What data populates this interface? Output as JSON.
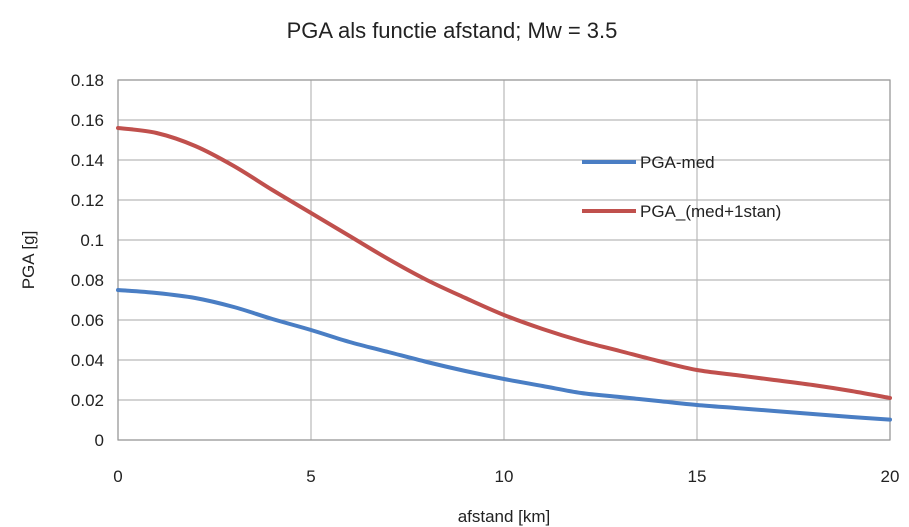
{
  "chart_data": {
    "type": "line",
    "title": "PGA als functie afstand; Mw = 3.5",
    "xlabel": "afstand [km]",
    "ylabel": "PGA [g]",
    "xlim": [
      0,
      20
    ],
    "ylim": [
      0,
      0.18
    ],
    "xticks": [
      0,
      5,
      10,
      15,
      20
    ],
    "yticks": [
      0,
      0.02,
      0.04,
      0.06,
      0.08,
      0.1,
      0.12,
      0.14,
      0.16,
      0.18
    ],
    "ytick_labels": [
      "0",
      "0.02",
      "0.04",
      "0.06",
      "0.08",
      "0.1",
      "0.12",
      "0.14",
      "0.16",
      "0.18"
    ],
    "grid": true,
    "legend_position": "right-upper-inside",
    "series": [
      {
        "name": "PGA-med",
        "color": "#4a7ec4",
        "x": [
          0,
          1,
          2,
          3,
          4,
          5,
          6,
          7,
          8,
          9,
          10,
          11,
          12,
          13,
          14,
          15,
          16,
          17,
          18,
          19,
          20
        ],
        "y": [
          0.075,
          0.0735,
          0.071,
          0.0665,
          0.0605,
          0.055,
          0.049,
          0.044,
          0.039,
          0.0345,
          0.0305,
          0.027,
          0.0235,
          0.0215,
          0.0195,
          0.0175,
          0.016,
          0.0145,
          0.013,
          0.0115,
          0.0102
        ]
      },
      {
        "name": "PGA_(med+1stan)",
        "color": "#c0504d",
        "x": [
          0,
          1,
          2,
          3,
          4,
          5,
          6,
          7,
          8,
          9,
          10,
          11,
          12,
          13,
          14,
          15,
          16,
          17,
          18,
          19,
          20
        ],
        "y": [
          0.156,
          0.1535,
          0.147,
          0.137,
          0.125,
          0.1135,
          0.102,
          0.0905,
          0.08,
          0.071,
          0.0625,
          0.0555,
          0.0495,
          0.0445,
          0.0395,
          0.035,
          0.0325,
          0.03,
          0.0275,
          0.0245,
          0.021
        ]
      }
    ]
  }
}
